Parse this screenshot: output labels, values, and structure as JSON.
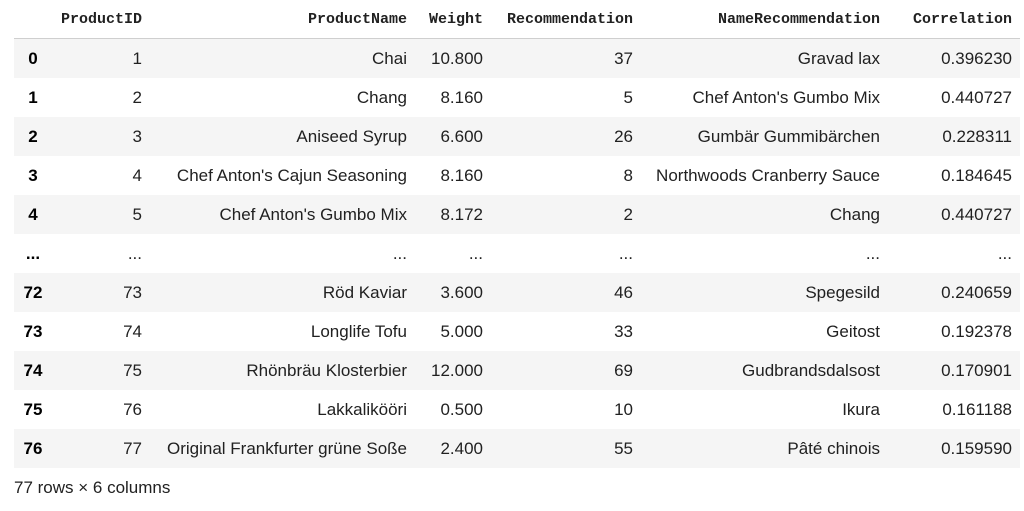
{
  "table": {
    "columns": [
      "",
      "ProductID",
      "ProductName",
      "Weight",
      "Recommendation",
      "NameRecommendation",
      "Correlation"
    ],
    "rows": [
      [
        "0",
        "1",
        "Chai",
        "10.800",
        "37",
        "Gravad lax",
        "0.396230"
      ],
      [
        "1",
        "2",
        "Chang",
        "8.160",
        "5",
        "Chef Anton's Gumbo Mix",
        "0.440727"
      ],
      [
        "2",
        "3",
        "Aniseed Syrup",
        "6.600",
        "26",
        "Gumbär Gummibärchen",
        "0.228311"
      ],
      [
        "3",
        "4",
        "Chef Anton's Cajun Seasoning",
        "8.160",
        "8",
        "Northwoods Cranberry Sauce",
        "0.184645"
      ],
      [
        "4",
        "5",
        "Chef Anton's Gumbo Mix",
        "8.172",
        "2",
        "Chang",
        "0.440727"
      ],
      [
        "...",
        "...",
        "...",
        "...",
        "...",
        "...",
        "..."
      ],
      [
        "72",
        "73",
        "Röd Kaviar",
        "3.600",
        "46",
        "Spegesild",
        "0.240659"
      ],
      [
        "73",
        "74",
        "Longlife Tofu",
        "5.000",
        "33",
        "Geitost",
        "0.192378"
      ],
      [
        "74",
        "75",
        "Rhönbräu Klosterbier",
        "12.000",
        "69",
        "Gudbrandsdalsost",
        "0.170901"
      ],
      [
        "75",
        "76",
        "Lakkalikööri",
        "0.500",
        "10",
        "Ikura",
        "0.161188"
      ],
      [
        "76",
        "77",
        "Original Frankfurter grüne Soße",
        "2.400",
        "55",
        "Pâté chinois",
        "0.159590"
      ]
    ]
  },
  "footer": {
    "shape_text": "77 rows × 6 columns"
  }
}
